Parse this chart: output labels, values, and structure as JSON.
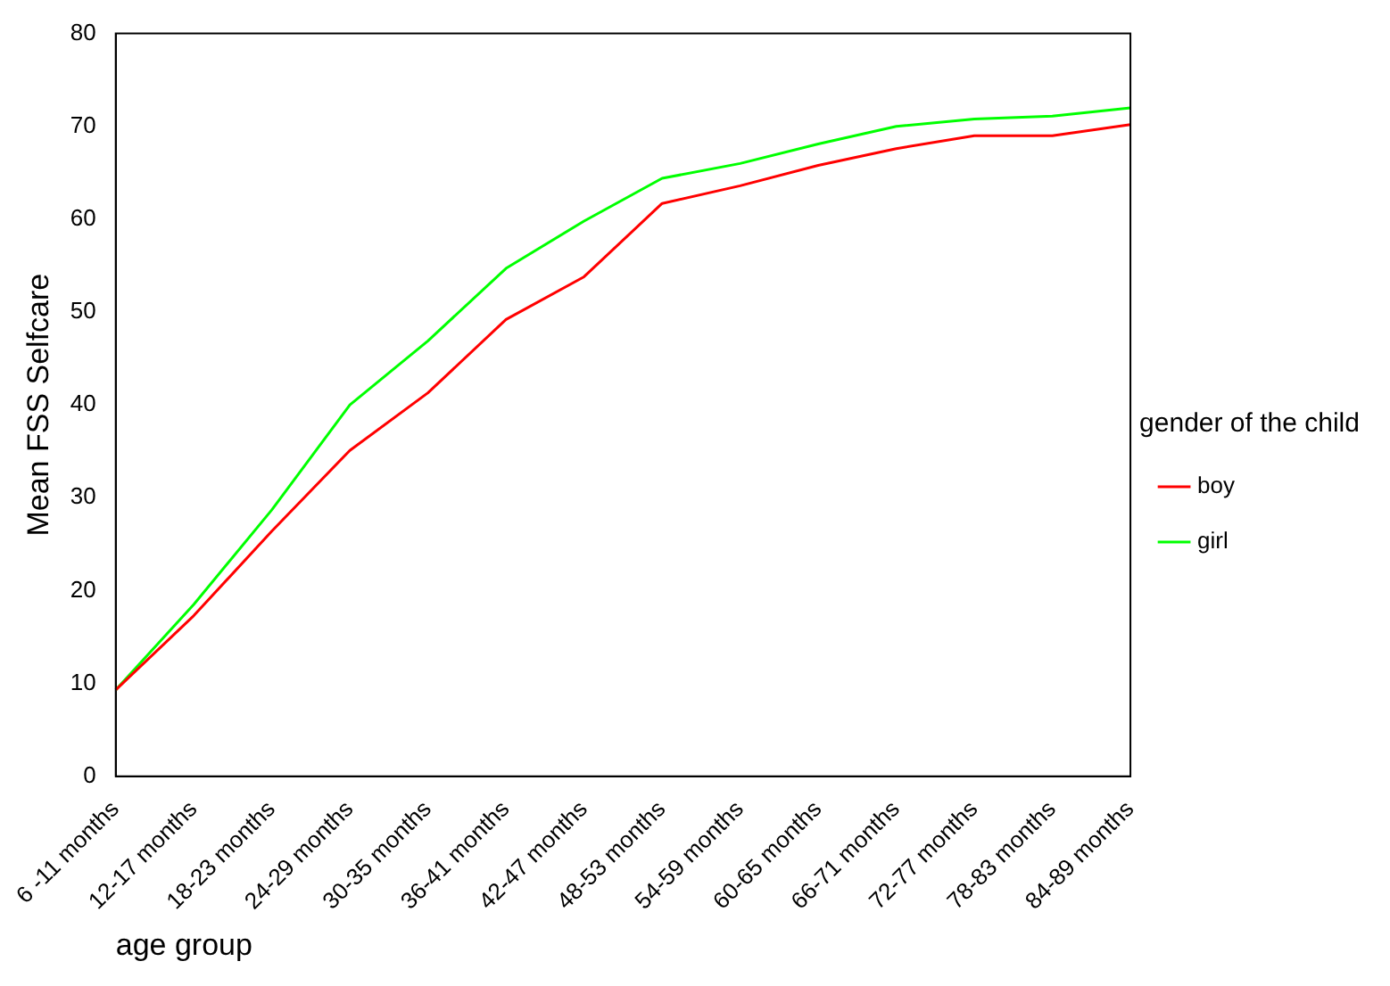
{
  "chart_data": {
    "type": "line",
    "xlabel": "age group",
    "ylabel": "Mean FSS Selfcare",
    "legend_title": "gender of the child",
    "categories": [
      "6 -11 months",
      "12-17 months",
      "18-23 months",
      "24-29 months",
      "30-35 months",
      "36-41 months",
      "42-47 months",
      "48-53 months",
      "54-59 months",
      "60-65 months",
      "66-71 months",
      "72-77 months",
      "78-83 months",
      "84-89 months"
    ],
    "series": [
      {
        "name": "boy",
        "color": "#ff0000",
        "values": [
          9.3,
          17.3,
          26.4,
          35.1,
          41.3,
          49.2,
          53.8,
          61.7,
          63.6,
          65.8,
          67.6,
          69.0,
          69.0,
          70.2
        ]
      },
      {
        "name": "girl",
        "color": "#00ff00",
        "values": [
          9.3,
          18.5,
          28.7,
          40.0,
          46.9,
          54.7,
          59.8,
          64.4,
          66.0,
          68.1,
          70.0,
          70.8,
          71.1,
          72.0
        ]
      }
    ],
    "ylim": [
      0,
      80
    ],
    "yticks": [
      0,
      10,
      20,
      30,
      40,
      50,
      60,
      70,
      80
    ],
    "grid": false,
    "legend": "right",
    "marker": "none",
    "line_style": "solid"
  }
}
